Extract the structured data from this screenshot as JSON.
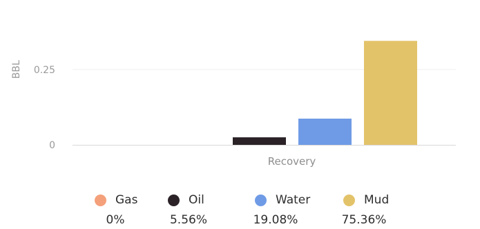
{
  "chart_data": {
    "type": "bar",
    "categories": [
      "Recovery"
    ],
    "series": [
      {
        "name": "Gas",
        "values": [
          0
        ],
        "color": "#f4a07a",
        "percent": "0%"
      },
      {
        "name": "Oil",
        "values": [
          0.025
        ],
        "color": "#2a2226",
        "percent": "5.56%"
      },
      {
        "name": "Water",
        "values": [
          0.087
        ],
        "color": "#6f9be6",
        "percent": "19.08%"
      },
      {
        "name": "Mud",
        "values": [
          0.345
        ],
        "color": "#e3c36a",
        "percent": "75.36%"
      }
    ],
    "title": "",
    "xlabel": "",
    "ylabel": "BBL",
    "yticks": [
      "0",
      "0.25"
    ],
    "ylim": [
      0,
      0.36
    ],
    "grid": true,
    "legend_position": "bottom"
  }
}
